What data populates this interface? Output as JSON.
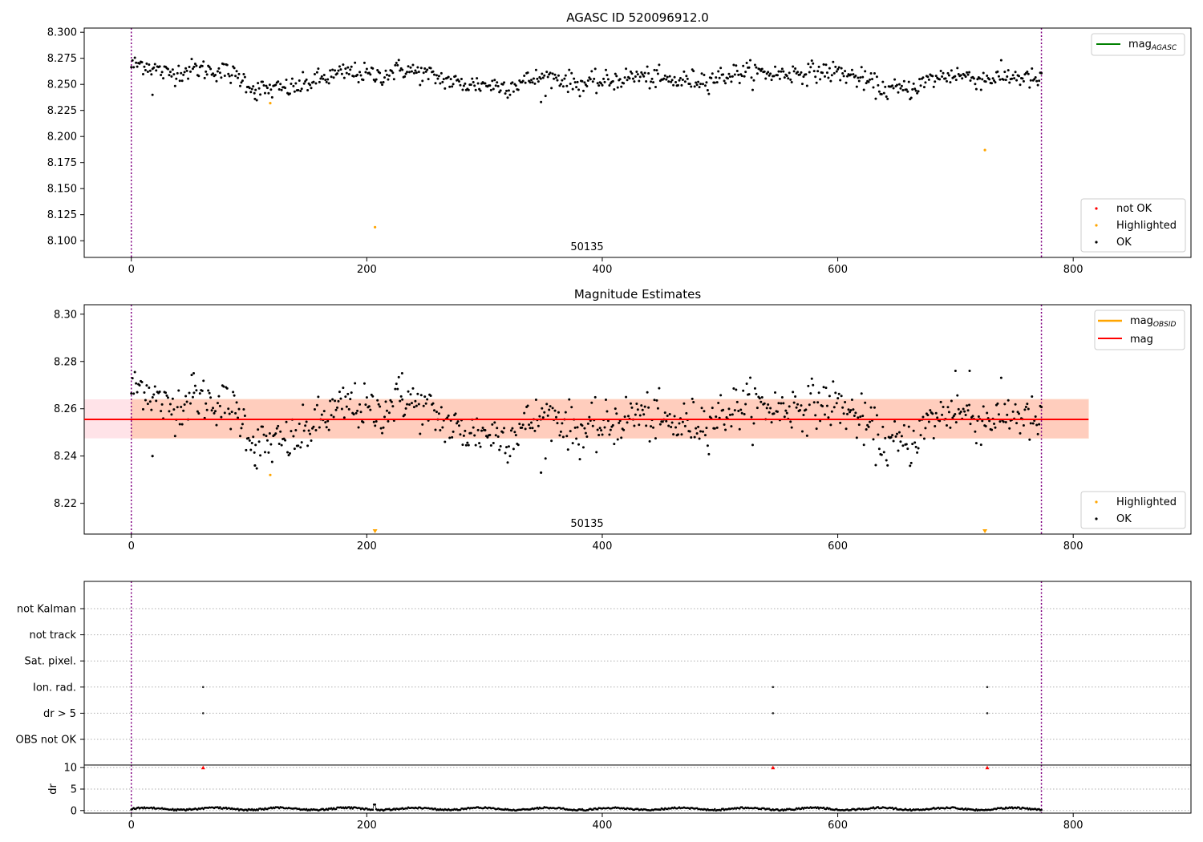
{
  "chart_data": [
    {
      "type": "scatter",
      "title": "AGASC ID 520096912.0",
      "annotation": "50135",
      "xlim": [
        -40,
        900
      ],
      "ylim": [
        8.084,
        8.304
      ],
      "xticks": [
        0,
        200,
        400,
        600,
        800
      ],
      "yticks": [
        8.1,
        8.125,
        8.15,
        8.175,
        8.2,
        8.225,
        8.25,
        8.275,
        8.3
      ],
      "vlines": [
        0,
        773
      ],
      "legend_lines": [
        {
          "label_main": "mag",
          "label_sub": "AGASC",
          "color": "#008000"
        }
      ],
      "legend_points": [
        {
          "label": "not OK",
          "color": "#ff0000"
        },
        {
          "label": "Highlighted",
          "color": "#ffa500"
        },
        {
          "label": "OK",
          "color": "#000000"
        }
      ],
      "series_highlighted": [
        [
          118,
          8.232
        ],
        [
          207,
          8.113
        ],
        [
          725,
          8.187
        ]
      ],
      "ok_profile": [
        [
          0,
          8.268
        ],
        [
          10,
          8.27
        ],
        [
          30,
          8.26
        ],
        [
          55,
          8.265
        ],
        [
          80,
          8.262
        ],
        [
          95,
          8.255
        ],
        [
          105,
          8.245
        ],
        [
          120,
          8.245
        ],
        [
          140,
          8.247
        ],
        [
          160,
          8.255
        ],
        [
          185,
          8.262
        ],
        [
          210,
          8.258
        ],
        [
          230,
          8.265
        ],
        [
          255,
          8.258
        ],
        [
          280,
          8.25
        ],
        [
          300,
          8.25
        ],
        [
          320,
          8.248
        ],
        [
          340,
          8.255
        ],
        [
          360,
          8.257
        ],
        [
          380,
          8.25
        ],
        [
          400,
          8.252
        ],
        [
          430,
          8.258
        ],
        [
          460,
          8.253
        ],
        [
          490,
          8.255
        ],
        [
          520,
          8.262
        ],
        [
          550,
          8.26
        ],
        [
          580,
          8.262
        ],
        [
          600,
          8.262
        ],
        [
          620,
          8.255
        ],
        [
          640,
          8.245
        ],
        [
          660,
          8.245
        ],
        [
          680,
          8.255
        ],
        [
          700,
          8.26
        ],
        [
          720,
          8.255
        ],
        [
          750,
          8.258
        ],
        [
          773,
          8.253
        ]
      ],
      "ok_count": 770,
      "ok_noise": 0.009,
      "ok_outliers": [
        [
          18,
          8.24
        ],
        [
          348,
          8.233
        ],
        [
          105,
          8.236
        ]
      ]
    },
    {
      "type": "scatter",
      "title": "Magnitude Estimates",
      "annotation": "50135",
      "xlim": [
        -40,
        900
      ],
      "ylim": [
        8.207,
        8.304
      ],
      "xticks": [
        0,
        200,
        400,
        600,
        800
      ],
      "yticks": [
        8.22,
        8.24,
        8.26,
        8.28,
        8.3
      ],
      "vlines": [
        0,
        773
      ],
      "mag": 8.2555,
      "mag_band": [
        8.2475,
        8.264
      ],
      "band_pink_x": [
        -40,
        813
      ],
      "band_orange_x": [
        0,
        813
      ],
      "mag_line_x": [
        -40,
        813
      ],
      "legend_lines": [
        {
          "label_main": "mag",
          "label_sub": "OBSID",
          "color": "#ffa500"
        },
        {
          "label_main": "mag",
          "label_sub": "",
          "color": "#ff0000"
        }
      ],
      "legend_points": [
        {
          "label": "Highlighted",
          "color": "#ffa500"
        },
        {
          "label": "OK",
          "color": "#000000"
        }
      ],
      "series_highlighted": [
        [
          118,
          8.232
        ]
      ],
      "offscale_markers": [
        207,
        725
      ],
      "ok_count": 770,
      "ok_outliers": [
        [
          18,
          8.24
        ],
        [
          348,
          8.233
        ],
        [
          105,
          8.236
        ],
        [
          700,
          8.276
        ],
        [
          712,
          8.276
        ],
        [
          53,
          8.275
        ],
        [
          230,
          8.275
        ]
      ]
    },
    {
      "type": "scatter",
      "title": "",
      "xlim": [
        -40,
        900
      ],
      "categories": [
        "not Kalman",
        "not track",
        "Sat. pixel.",
        "Ion. rad.",
        "dr > 5",
        "OBS not OK"
      ],
      "vlines": [
        0,
        773
      ],
      "flag_points": [
        {
          "category": "Ion. rad.",
          "x": [
            61,
            545,
            727
          ]
        },
        {
          "category": "dr > 5",
          "x": [
            61,
            545,
            727
          ]
        }
      ]
    },
    {
      "type": "line",
      "title": "",
      "ylabel": "dr",
      "xlim": [
        -40,
        900
      ],
      "ylim": [
        -0.6,
        10.6
      ],
      "xticks": [
        0,
        200,
        400,
        600,
        800
      ],
      "yticks": [
        0,
        5,
        10
      ],
      "vlines": [
        0,
        773
      ],
      "clipped_points": [
        61,
        545,
        727
      ],
      "dr_typical": 0.4,
      "dr_spike": [
        [
          207,
          1.4
        ]
      ]
    }
  ]
}
